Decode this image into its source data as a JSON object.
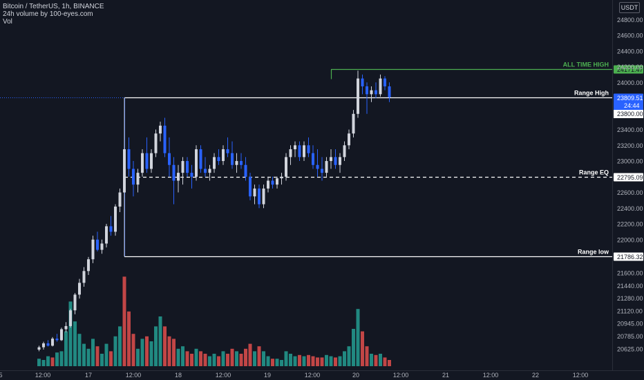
{
  "header": {
    "symbol_line": "Bitcoin / TetherUS, 1h, BINANCE",
    "indicator_line": "24h volume by 100-eyes.com",
    "vol_label": "Vol"
  },
  "currency_badge": "USDT",
  "colors": {
    "background": "#131722",
    "up_candle": "#d1d4dc",
    "down_candle": "#2962ff",
    "volume_up": "#26a69a",
    "volume_down": "#ef5350",
    "ath_line": "#4caf50",
    "range_line": "#ffffff",
    "current_price_tag": "#2962ff"
  },
  "chart_data": {
    "type": "candlestick",
    "y_axis": {
      "ticks": [
        "24800.00",
        "24600.00",
        "24400.00",
        "24200.00",
        "24000.00",
        "23400.00",
        "23200.00",
        "23000.00",
        "22600.00",
        "22400.00",
        "22200.00",
        "22000.00",
        "21600.00",
        "21440.00",
        "21280.00",
        "21120.00",
        "20945.00",
        "20785.00",
        "20625.00"
      ]
    },
    "x_axis": {
      "ticks": [
        "5",
        "12:00",
        "17",
        "12:00",
        "18",
        "12:00",
        "19",
        "12:00",
        "20",
        "12:00",
        "21",
        "12:00",
        "22",
        "12:00"
      ]
    },
    "levels": [
      {
        "label": "ALL TIME HIGH",
        "price": 24171.47,
        "price_text": "24171.47",
        "style": "solid",
        "color": "#4caf50"
      },
      {
        "label": "Range High",
        "price": 23809.51,
        "price_text": "23809.51",
        "style": "solid",
        "color": "#ffffff"
      },
      {
        "label": "Range EQ",
        "price": 22795.09,
        "price_text": "22795.09",
        "style": "dashed",
        "color": "#ffffff"
      },
      {
        "label": "Range low",
        "price": 21786.32,
        "price_text": "21786.32",
        "style": "solid",
        "color": "#ffffff"
      }
    ],
    "current_price": {
      "price": 23809.51,
      "price_text": "23809.51",
      "countdown": "24:44"
    },
    "extra_price_tag": {
      "price": 23800.0,
      "price_text": "23800.00"
    },
    "candles": [
      {
        "o": 20600,
        "h": 20650,
        "l": 20580,
        "c": 20630
      },
      {
        "o": 20630,
        "h": 20700,
        "l": 20600,
        "c": 20680
      },
      {
        "o": 20680,
        "h": 20720,
        "l": 20640,
        "c": 20650
      },
      {
        "o": 20650,
        "h": 20760,
        "l": 20640,
        "c": 20740
      },
      {
        "o": 20740,
        "h": 20800,
        "l": 20700,
        "c": 20720
      },
      {
        "o": 20720,
        "h": 20880,
        "l": 20710,
        "c": 20860
      },
      {
        "o": 20860,
        "h": 20950,
        "l": 20820,
        "c": 20900
      },
      {
        "o": 20900,
        "h": 21120,
        "l": 20880,
        "c": 21100
      },
      {
        "o": 21100,
        "h": 21320,
        "l": 21050,
        "c": 21300
      },
      {
        "o": 21300,
        "h": 21500,
        "l": 21250,
        "c": 21450
      },
      {
        "o": 21450,
        "h": 21650,
        "l": 21400,
        "c": 21600
      },
      {
        "o": 21600,
        "h": 21780,
        "l": 21550,
        "c": 21750
      },
      {
        "o": 21750,
        "h": 22050,
        "l": 21700,
        "c": 22000
      },
      {
        "o": 22000,
        "h": 22100,
        "l": 21850,
        "c": 21870
      },
      {
        "o": 21870,
        "h": 22000,
        "l": 21820,
        "c": 21950
      },
      {
        "o": 21950,
        "h": 22200,
        "l": 21900,
        "c": 22170
      },
      {
        "o": 22170,
        "h": 22300,
        "l": 22050,
        "c": 22100
      },
      {
        "o": 22100,
        "h": 22450,
        "l": 22050,
        "c": 22420
      },
      {
        "o": 22420,
        "h": 22650,
        "l": 22350,
        "c": 22600
      },
      {
        "o": 22600,
        "h": 23809,
        "l": 21786,
        "c": 23150
      },
      {
        "o": 23150,
        "h": 23300,
        "l": 22800,
        "c": 22900
      },
      {
        "o": 22900,
        "h": 23000,
        "l": 22550,
        "c": 22700
      },
      {
        "o": 22700,
        "h": 22900,
        "l": 22600,
        "c": 22850
      },
      {
        "o": 22850,
        "h": 23150,
        "l": 22800,
        "c": 23100
      },
      {
        "o": 23100,
        "h": 23300,
        "l": 22850,
        "c": 22900
      },
      {
        "o": 22900,
        "h": 23150,
        "l": 22850,
        "c": 23100
      },
      {
        "o": 23100,
        "h": 23400,
        "l": 23050,
        "c": 23350
      },
      {
        "o": 23350,
        "h": 23500,
        "l": 23250,
        "c": 23450
      },
      {
        "o": 23450,
        "h": 23550,
        "l": 23050,
        "c": 23100
      },
      {
        "o": 23100,
        "h": 23300,
        "l": 22800,
        "c": 22950
      },
      {
        "o": 22950,
        "h": 23050,
        "l": 22450,
        "c": 22750
      },
      {
        "o": 22750,
        "h": 22950,
        "l": 22600,
        "c": 22850
      },
      {
        "o": 22850,
        "h": 23050,
        "l": 22700,
        "c": 23000
      },
      {
        "o": 23000,
        "h": 23050,
        "l": 22800,
        "c": 22850
      },
      {
        "o": 22850,
        "h": 22950,
        "l": 22650,
        "c": 22800
      },
      {
        "o": 22800,
        "h": 23200,
        "l": 22750,
        "c": 23150
      },
      {
        "o": 23150,
        "h": 23200,
        "l": 22850,
        "c": 22900
      },
      {
        "o": 22900,
        "h": 23050,
        "l": 22800,
        "c": 22850
      },
      {
        "o": 22850,
        "h": 22950,
        "l": 22750,
        "c": 22900
      },
      {
        "o": 22900,
        "h": 23100,
        "l": 22850,
        "c": 23050
      },
      {
        "o": 23050,
        "h": 23150,
        "l": 22950,
        "c": 23000
      },
      {
        "o": 23000,
        "h": 23200,
        "l": 22950,
        "c": 23150
      },
      {
        "o": 23150,
        "h": 23300,
        "l": 23050,
        "c": 23100
      },
      {
        "o": 23100,
        "h": 23250,
        "l": 22900,
        "c": 22950
      },
      {
        "o": 22950,
        "h": 23100,
        "l": 22850,
        "c": 23000
      },
      {
        "o": 23000,
        "h": 23100,
        "l": 22900,
        "c": 22950
      },
      {
        "o": 22950,
        "h": 23050,
        "l": 22750,
        "c": 22800
      },
      {
        "o": 22800,
        "h": 22850,
        "l": 22500,
        "c": 22550
      },
      {
        "o": 22550,
        "h": 22700,
        "l": 22450,
        "c": 22650
      },
      {
        "o": 22650,
        "h": 22700,
        "l": 22400,
        "c": 22450
      },
      {
        "o": 22450,
        "h": 22700,
        "l": 22400,
        "c": 22650
      },
      {
        "o": 22650,
        "h": 22800,
        "l": 22600,
        "c": 22750
      },
      {
        "o": 22750,
        "h": 22800,
        "l": 22650,
        "c": 22700
      },
      {
        "o": 22700,
        "h": 22800,
        "l": 22650,
        "c": 22780
      },
      {
        "o": 22780,
        "h": 22850,
        "l": 22700,
        "c": 22800
      },
      {
        "o": 22800,
        "h": 23100,
        "l": 22750,
        "c": 23050
      },
      {
        "o": 23050,
        "h": 23200,
        "l": 22950,
        "c": 23150
      },
      {
        "o": 23150,
        "h": 23250,
        "l": 23050,
        "c": 23200
      },
      {
        "o": 23200,
        "h": 23250,
        "l": 23000,
        "c": 23050
      },
      {
        "o": 23050,
        "h": 23250,
        "l": 23000,
        "c": 23200
      },
      {
        "o": 23200,
        "h": 23300,
        "l": 23050,
        "c": 23100
      },
      {
        "o": 23100,
        "h": 23200,
        "l": 22900,
        "c": 22950
      },
      {
        "o": 22950,
        "h": 23150,
        "l": 22800,
        "c": 22900
      },
      {
        "o": 22900,
        "h": 23050,
        "l": 22750,
        "c": 22850
      },
      {
        "o": 22850,
        "h": 23050,
        "l": 22800,
        "c": 23000
      },
      {
        "o": 23000,
        "h": 23150,
        "l": 22900,
        "c": 23050
      },
      {
        "o": 23050,
        "h": 23150,
        "l": 22900,
        "c": 22950
      },
      {
        "o": 22950,
        "h": 23100,
        "l": 22850,
        "c": 23050
      },
      {
        "o": 23050,
        "h": 23250,
        "l": 23000,
        "c": 23200
      },
      {
        "o": 23200,
        "h": 23400,
        "l": 23150,
        "c": 23350
      },
      {
        "o": 23350,
        "h": 23650,
        "l": 23300,
        "c": 23600
      },
      {
        "o": 23600,
        "h": 24150,
        "l": 23550,
        "c": 24050
      },
      {
        "o": 24050,
        "h": 24100,
        "l": 23850,
        "c": 23950
      },
      {
        "o": 23950,
        "h": 24000,
        "l": 23600,
        "c": 23850
      },
      {
        "o": 23850,
        "h": 23950,
        "l": 23750,
        "c": 23900
      },
      {
        "o": 23900,
        "h": 24000,
        "l": 23800,
        "c": 23850
      },
      {
        "o": 23850,
        "h": 24100,
        "l": 23820,
        "c": 24050
      },
      {
        "o": 24050,
        "h": 24080,
        "l": 23900,
        "c": 23950
      },
      {
        "o": 23950,
        "h": 24000,
        "l": 23750,
        "c": 23810
      }
    ],
    "volumes": [
      {
        "v": 30,
        "up": true
      },
      {
        "v": 25,
        "up": true
      },
      {
        "v": 40,
        "up": true
      },
      {
        "v": 35,
        "up": false
      },
      {
        "v": 55,
        "up": true
      },
      {
        "v": 60,
        "up": true
      },
      {
        "v": 140,
        "up": true
      },
      {
        "v": 260,
        "up": true
      },
      {
        "v": 180,
        "up": true
      },
      {
        "v": 130,
        "up": true
      },
      {
        "v": 90,
        "up": true
      },
      {
        "v": 70,
        "up": true
      },
      {
        "v": 110,
        "up": true
      },
      {
        "v": 80,
        "up": false
      },
      {
        "v": 50,
        "up": true
      },
      {
        "v": 90,
        "up": true
      },
      {
        "v": 60,
        "up": false
      },
      {
        "v": 120,
        "up": true
      },
      {
        "v": 160,
        "up": true
      },
      {
        "v": 360,
        "up": false
      },
      {
        "v": 220,
        "up": false
      },
      {
        "v": 130,
        "up": false
      },
      {
        "v": 70,
        "up": true
      },
      {
        "v": 110,
        "up": true
      },
      {
        "v": 120,
        "up": false
      },
      {
        "v": 100,
        "up": true
      },
      {
        "v": 160,
        "up": true
      },
      {
        "v": 200,
        "up": true
      },
      {
        "v": 160,
        "up": false
      },
      {
        "v": 120,
        "up": false
      },
      {
        "v": 110,
        "up": false
      },
      {
        "v": 70,
        "up": true
      },
      {
        "v": 80,
        "up": true
      },
      {
        "v": 60,
        "up": false
      },
      {
        "v": 50,
        "up": false
      },
      {
        "v": 70,
        "up": true
      },
      {
        "v": 60,
        "up": false
      },
      {
        "v": 50,
        "up": false
      },
      {
        "v": 40,
        "up": true
      },
      {
        "v": 50,
        "up": true
      },
      {
        "v": 40,
        "up": false
      },
      {
        "v": 60,
        "up": true
      },
      {
        "v": 50,
        "up": false
      },
      {
        "v": 70,
        "up": false
      },
      {
        "v": 60,
        "up": true
      },
      {
        "v": 50,
        "up": false
      },
      {
        "v": 70,
        "up": false
      },
      {
        "v": 90,
        "up": false
      },
      {
        "v": 60,
        "up": true
      },
      {
        "v": 80,
        "up": false
      },
      {
        "v": 60,
        "up": true
      },
      {
        "v": 40,
        "up": true
      },
      {
        "v": 30,
        "up": false
      },
      {
        "v": 30,
        "up": true
      },
      {
        "v": 25,
        "up": true
      },
      {
        "v": 60,
        "up": true
      },
      {
        "v": 50,
        "up": true
      },
      {
        "v": 40,
        "up": true
      },
      {
        "v": 45,
        "up": false
      },
      {
        "v": 40,
        "up": true
      },
      {
        "v": 45,
        "up": false
      },
      {
        "v": 40,
        "up": false
      },
      {
        "v": 35,
        "up": false
      },
      {
        "v": 35,
        "up": false
      },
      {
        "v": 45,
        "up": true
      },
      {
        "v": 40,
        "up": true
      },
      {
        "v": 35,
        "up": false
      },
      {
        "v": 40,
        "up": true
      },
      {
        "v": 60,
        "up": true
      },
      {
        "v": 80,
        "up": true
      },
      {
        "v": 150,
        "up": true
      },
      {
        "v": 230,
        "up": true
      },
      {
        "v": 140,
        "up": false
      },
      {
        "v": 80,
        "up": false
      },
      {
        "v": 50,
        "up": true
      },
      {
        "v": 45,
        "up": false
      },
      {
        "v": 50,
        "up": true
      },
      {
        "v": 35,
        "up": false
      },
      {
        "v": 25,
        "up": false
      }
    ]
  }
}
